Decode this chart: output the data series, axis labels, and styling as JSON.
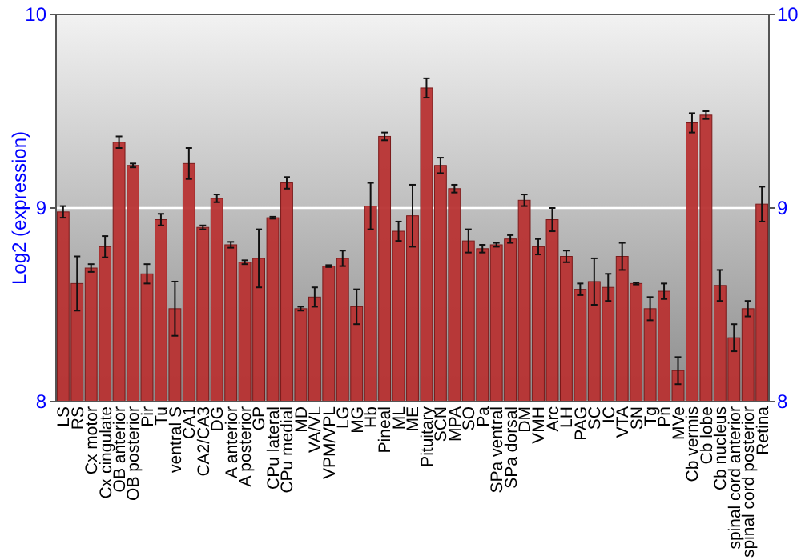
{
  "chart_data": {
    "type": "bar",
    "ylabel": "Log2 (expression)",
    "categories": [
      "LS",
      "RS",
      "Cx motor",
      "Cx cingulate",
      "OB anterior",
      "OB posterior",
      "Pir",
      "Tu",
      "ventral S",
      "CA1",
      "CA2/CA3",
      "DG",
      "A anterior",
      "A posterior",
      "GP",
      "CPu lateral",
      "CPu medial",
      "MD",
      "VA/VL",
      "VPM/VPL",
      "LG",
      "MG",
      "Hb",
      "Pineal",
      "ML",
      "ME",
      "Pituitary",
      "SCN",
      "MPA",
      "SO",
      "Pa",
      "SPa ventral",
      "SPa dorsal",
      "DM",
      "VMH",
      "Arc",
      "LH",
      "PAG",
      "SC",
      "IC",
      "VTA",
      "SN",
      "Tg",
      "Pn",
      "MVe",
      "Cb vermis",
      "Cb lobe",
      "Cb nucleus",
      "spinal cord anterior",
      "spinal cord posterior",
      "Retina"
    ],
    "values": [
      8.98,
      8.61,
      8.69,
      8.8,
      9.34,
      9.22,
      8.66,
      8.94,
      8.48,
      9.23,
      8.9,
      9.05,
      8.81,
      8.72,
      8.74,
      8.95,
      9.13,
      8.48,
      8.54,
      8.7,
      8.74,
      8.49,
      9.01,
      9.37,
      8.88,
      8.96,
      9.62,
      9.22,
      9.1,
      8.83,
      8.79,
      8.81,
      8.84,
      9.04,
      8.8,
      8.94,
      8.75,
      8.58,
      8.62,
      8.59,
      8.75,
      8.61,
      8.48,
      8.57,
      8.16,
      9.44,
      9.48,
      8.6,
      8.33,
      8.48,
      9.02
    ],
    "errors": [
      0.03,
      0.14,
      0.02,
      0.055,
      0.03,
      0.01,
      0.05,
      0.03,
      0.14,
      0.08,
      0.01,
      0.02,
      0.015,
      0.01,
      0.15,
      0.005,
      0.03,
      0.01,
      0.05,
      0.005,
      0.04,
      0.09,
      0.12,
      0.02,
      0.05,
      0.16,
      0.05,
      0.04,
      0.02,
      0.06,
      0.02,
      0.01,
      0.02,
      0.03,
      0.04,
      0.06,
      0.03,
      0.03,
      0.12,
      0.07,
      0.07,
      0.005,
      0.06,
      0.04,
      0.07,
      0.05,
      0.02,
      0.08,
      0.07,
      0.04,
      0.09
    ],
    "color": "#b83333",
    "ylim": [
      8,
      10
    ],
    "yticks": [
      8,
      9,
      10
    ],
    "y2lim": [
      8,
      10
    ],
    "y2ticks": [
      8,
      9,
      10
    ],
    "grid": "y"
  }
}
